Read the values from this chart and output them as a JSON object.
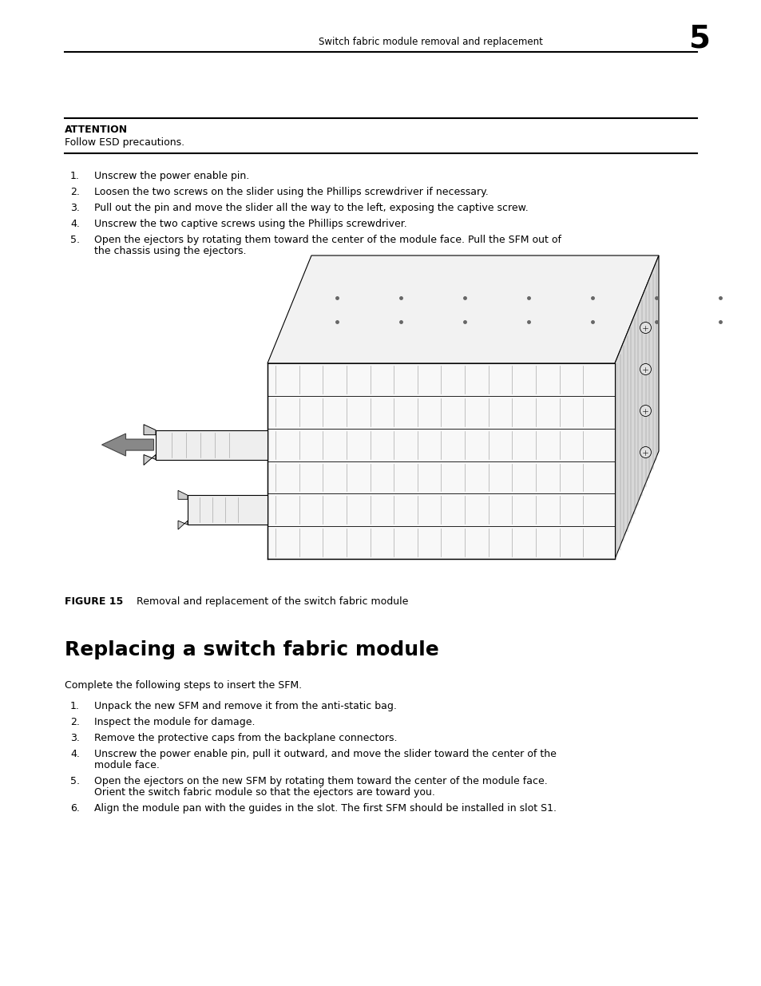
{
  "bg_color": "#ffffff",
  "header_text": "Switch fabric module removal and replacement",
  "header_number": "5",
  "attention_label": "ATTENTION",
  "attention_text": "Follow ESD precautions.",
  "removal_steps": [
    "Unscrew the power enable pin.",
    "Loosen the two screws on the slider using the Phillips screwdriver if necessary.",
    "Pull out the pin and move the slider all the way to the left, exposing the captive screw.",
    "Unscrew the two captive screws using the Phillips screwdriver.",
    "Open the ejectors by rotating them toward the center of the module face. Pull the SFM out of\nthe chassis using the ejectors."
  ],
  "figure_label": "FIGURE 15",
  "figure_caption": "Removal and replacement of the switch fabric module",
  "section_title": "Replacing a switch fabric module",
  "section_intro": "Complete the following steps to insert the SFM.",
  "replace_steps": [
    "Unpack the new SFM and remove it from the anti-static bag.",
    "Inspect the module for damage.",
    "Remove the protective caps from the backplane connectors.",
    "Unscrew the power enable pin, pull it outward, and move the slider toward the center of the\nmodule face.",
    "Open the ejectors on the new SFM by rotating them toward the center of the module face.\nOrient the switch fabric module so that the ejectors are toward you.",
    "Align the module pan with the guides in the slot. The first SFM should be installed in slot S1."
  ]
}
